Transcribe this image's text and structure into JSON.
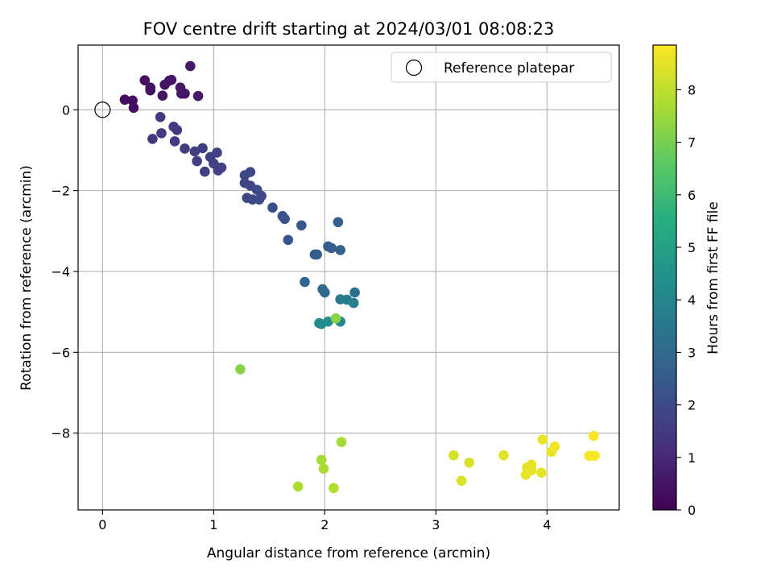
{
  "chart_data": {
    "type": "scatter",
    "title": "FOV centre drift starting at 2024/03/01 08:08:23",
    "xlabel": "Angular distance from reference (arcmin)",
    "ylabel": "Rotation from reference (arcmin)",
    "xlim": [
      -0.22,
      4.65
    ],
    "ylim": [
      -9.9,
      1.6
    ],
    "xticks": [
      0,
      1,
      2,
      3,
      4
    ],
    "yticks": [
      0,
      -2,
      -4,
      -6,
      -8
    ],
    "xtick_labels": [
      "0",
      "1",
      "2",
      "3",
      "4"
    ],
    "ytick_labels": [
      "0",
      "−2",
      "−4",
      "−6",
      "−8"
    ],
    "grid": true,
    "legend": {
      "position": "top-right",
      "label": "Reference platepar"
    },
    "reference_point": {
      "x": 0,
      "y": 0
    },
    "colorbar": {
      "label": "Hours from first FF file",
      "range": [
        0,
        8.85
      ],
      "ticks": [
        0,
        1,
        2,
        3,
        4,
        5,
        6,
        7,
        8
      ],
      "tick_labels": [
        "0",
        "1",
        "2",
        "3",
        "4",
        "5",
        "6",
        "7",
        "8"
      ],
      "colormap": "viridis"
    },
    "points": [
      {
        "x": 0.2,
        "y": 0.25,
        "h": 0.3
      },
      {
        "x": 0.27,
        "y": 0.23,
        "h": 0.3
      },
      {
        "x": 0.28,
        "y": 0.05,
        "h": 0.3
      },
      {
        "x": 0.38,
        "y": 0.73,
        "h": 0.35
      },
      {
        "x": 0.43,
        "y": 0.48,
        "h": 0.4
      },
      {
        "x": 0.43,
        "y": 0.55,
        "h": 0.4
      },
      {
        "x": 0.54,
        "y": 0.35,
        "h": 0.45
      },
      {
        "x": 0.56,
        "y": 0.62,
        "h": 0.45
      },
      {
        "x": 0.6,
        "y": 0.72,
        "h": 0.5
      },
      {
        "x": 0.62,
        "y": 0.74,
        "h": 0.5
      },
      {
        "x": 0.7,
        "y": 0.55,
        "h": 0.55
      },
      {
        "x": 0.71,
        "y": 0.4,
        "h": 0.55
      },
      {
        "x": 0.74,
        "y": 0.4,
        "h": 0.55
      },
      {
        "x": 0.79,
        "y": 1.08,
        "h": 0.6
      },
      {
        "x": 0.86,
        "y": 0.34,
        "h": 0.6
      },
      {
        "x": 0.45,
        "y": -0.72,
        "h": 1.45
      },
      {
        "x": 0.52,
        "y": -0.18,
        "h": 1.45
      },
      {
        "x": 0.53,
        "y": -0.58,
        "h": 1.5
      },
      {
        "x": 0.64,
        "y": -0.42,
        "h": 1.5
      },
      {
        "x": 0.65,
        "y": -0.78,
        "h": 1.5
      },
      {
        "x": 0.67,
        "y": -0.5,
        "h": 1.5
      },
      {
        "x": 0.74,
        "y": -0.96,
        "h": 1.55
      },
      {
        "x": 0.83,
        "y": -1.03,
        "h": 1.6
      },
      {
        "x": 0.85,
        "y": -1.27,
        "h": 1.6
      },
      {
        "x": 0.9,
        "y": -0.95,
        "h": 1.6
      },
      {
        "x": 0.92,
        "y": -1.53,
        "h": 1.65
      },
      {
        "x": 0.97,
        "y": -1.17,
        "h": 1.65
      },
      {
        "x": 1.0,
        "y": -1.33,
        "h": 1.7
      },
      {
        "x": 1.03,
        "y": -1.06,
        "h": 1.7
      },
      {
        "x": 1.04,
        "y": -1.5,
        "h": 1.7
      },
      {
        "x": 1.07,
        "y": -1.43,
        "h": 1.7
      },
      {
        "x": 1.28,
        "y": -1.62,
        "h": 1.85
      },
      {
        "x": 1.28,
        "y": -1.81,
        "h": 1.85
      },
      {
        "x": 1.3,
        "y": -2.18,
        "h": 1.9
      },
      {
        "x": 1.33,
        "y": -1.54,
        "h": 1.9
      },
      {
        "x": 1.33,
        "y": -1.88,
        "h": 1.9
      },
      {
        "x": 1.35,
        "y": -2.22,
        "h": 1.95
      },
      {
        "x": 1.39,
        "y": -1.98,
        "h": 2.0
      },
      {
        "x": 1.41,
        "y": -2.22,
        "h": 2.0
      },
      {
        "x": 1.43,
        "y": -2.13,
        "h": 2.0
      },
      {
        "x": 1.53,
        "y": -2.42,
        "h": 2.1
      },
      {
        "x": 1.62,
        "y": -2.63,
        "h": 2.2
      },
      {
        "x": 1.64,
        "y": -2.7,
        "h": 2.2
      },
      {
        "x": 1.67,
        "y": -3.22,
        "h": 2.3
      },
      {
        "x": 1.79,
        "y": -2.86,
        "h": 2.4
      },
      {
        "x": 1.82,
        "y": -4.26,
        "h": 2.9
      },
      {
        "x": 1.91,
        "y": -3.58,
        "h": 2.55
      },
      {
        "x": 1.93,
        "y": -3.58,
        "h": 2.55
      },
      {
        "x": 1.98,
        "y": -4.44,
        "h": 3.0
      },
      {
        "x": 2.0,
        "y": -4.52,
        "h": 3.05
      },
      {
        "x": 2.03,
        "y": -3.38,
        "h": 2.65
      },
      {
        "x": 2.06,
        "y": -3.42,
        "h": 2.65
      },
      {
        "x": 2.12,
        "y": -2.78,
        "h": 2.7
      },
      {
        "x": 2.14,
        "y": -3.47,
        "h": 2.75
      },
      {
        "x": 2.14,
        "y": -4.69,
        "h": 3.6
      },
      {
        "x": 2.2,
        "y": -4.7,
        "h": 3.7
      },
      {
        "x": 2.26,
        "y": -4.78,
        "h": 3.85
      },
      {
        "x": 2.27,
        "y": -4.52,
        "h": 3.25
      },
      {
        "x": 1.95,
        "y": -5.28,
        "h": 4.2
      },
      {
        "x": 1.97,
        "y": -5.3,
        "h": 4.2
      },
      {
        "x": 2.03,
        "y": -5.24,
        "h": 4.3
      },
      {
        "x": 2.14,
        "y": -5.24,
        "h": 4.1
      },
      {
        "x": 2.1,
        "y": -5.16,
        "h": 7.2
      },
      {
        "x": 1.24,
        "y": -6.42,
        "h": 7.2
      },
      {
        "x": 2.15,
        "y": -8.22,
        "h": 7.6
      },
      {
        "x": 1.97,
        "y": -8.66,
        "h": 7.65
      },
      {
        "x": 1.99,
        "y": -8.88,
        "h": 7.7
      },
      {
        "x": 1.76,
        "y": -9.32,
        "h": 7.75
      },
      {
        "x": 2.08,
        "y": -9.36,
        "h": 7.8
      },
      {
        "x": 3.16,
        "y": -8.55,
        "h": 8.3
      },
      {
        "x": 3.23,
        "y": -9.18,
        "h": 8.35
      },
      {
        "x": 3.3,
        "y": -8.73,
        "h": 8.35
      },
      {
        "x": 3.61,
        "y": -8.55,
        "h": 8.45
      },
      {
        "x": 3.81,
        "y": -9.03,
        "h": 8.5
      },
      {
        "x": 3.82,
        "y": -8.85,
        "h": 8.5
      },
      {
        "x": 3.86,
        "y": -8.78,
        "h": 8.5
      },
      {
        "x": 3.86,
        "y": -8.92,
        "h": 8.55
      },
      {
        "x": 3.95,
        "y": -8.98,
        "h": 8.55
      },
      {
        "x": 3.96,
        "y": -8.16,
        "h": 8.6
      },
      {
        "x": 4.04,
        "y": -8.46,
        "h": 8.6
      },
      {
        "x": 4.07,
        "y": -8.33,
        "h": 8.65
      },
      {
        "x": 4.38,
        "y": -8.56,
        "h": 8.75
      },
      {
        "x": 4.42,
        "y": -8.07,
        "h": 8.8
      },
      {
        "x": 4.43,
        "y": -8.56,
        "h": 8.8
      }
    ]
  }
}
